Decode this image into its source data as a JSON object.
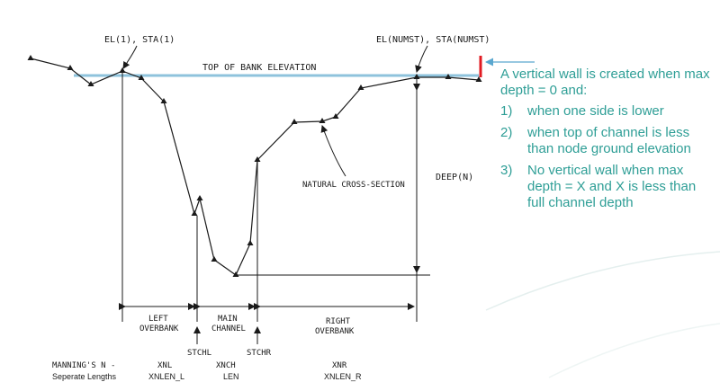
{
  "labels": {
    "el1_sta1": "EL(1), STA(1)",
    "el_numst": "EL(NUMST), STA(NUMST)",
    "top_of_bank": "TOP OF BANK ELEVATION",
    "natural_section": "NATURAL CROSS-SECTION",
    "deep": "DEEP(N)",
    "left_overbank_1": "LEFT",
    "left_overbank_2": "OVERBANK",
    "main_channel_1": "MAIN",
    "main_channel_2": "CHANNEL",
    "right_overbank_1": "RIGHT",
    "right_overbank_2": "OVERBANK",
    "stchl": "STCHL",
    "stchr": "STCHR",
    "mannings": "MANNING'S N -",
    "xnl": "XNL",
    "xnch": "XNCH",
    "xnr": "XNR",
    "separate_lengths": "Seperate Lengths",
    "xnlen_l": "XNLEN_L",
    "len": "LEN",
    "xnlen_r": "XNLEN_R"
  },
  "note": {
    "intro": "A vertical wall is created when max depth = 0 and:",
    "items": [
      {
        "num": "1)",
        "text": "when one side is lower"
      },
      {
        "num": "2)",
        "text": "when top of channel is less than node ground elevation"
      },
      {
        "num": "3)",
        "text": "No vertical wall when max depth = X and X is less than full channel depth"
      }
    ]
  },
  "colors": {
    "line": "#1a1a1a",
    "bank_line": "#8ec3dc",
    "note_text": "#2e9e96",
    "arrow": "#5aa7cf",
    "wall": "#e11b22"
  }
}
